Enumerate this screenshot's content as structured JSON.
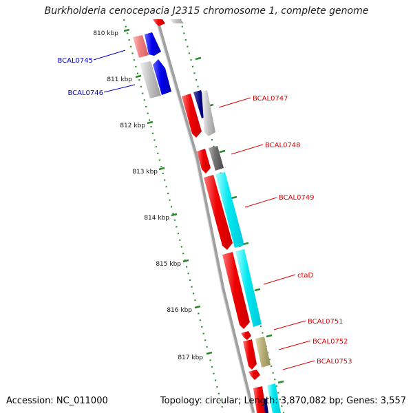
{
  "title": "Burkholderia cenocepacia J2315 chromosome 1, complete genome",
  "footer": {
    "accession": "Accession: NC_011000",
    "summary": "Topology: circular; Length: 3,870,082 bp; Genes: 3,557"
  },
  "colors": {
    "backbone": "#999999",
    "tick": "#2a8a2a",
    "label_red": "#dd0000",
    "label_blue": "#0000cc",
    "red": "#ee0000",
    "blue": "#0000ee",
    "navy": "#000080",
    "cyan": "#00e8f0",
    "grey": "#c0c0c0",
    "darkgrey": "#707070",
    "olive": "#b8b078",
    "pink": "#f08080"
  },
  "scale_labels": [
    "810 kbp",
    "811 kbp",
    "812 kbp",
    "813 kbp",
    "814 kbp",
    "815 kbp",
    "816 kbp",
    "817 kbp"
  ],
  "gene_labels": [
    {
      "text": "BCAL0745",
      "color": "blue"
    },
    {
      "text": "BCAL0746",
      "color": "blue"
    },
    {
      "text": "BCAL0747",
      "color": "red"
    },
    {
      "text": "BCAL0748",
      "color": "red"
    },
    {
      "text": "BCAL0749",
      "color": "red"
    },
    {
      "text": "ctaD",
      "color": "red"
    },
    {
      "text": "BCAL0751",
      "color": "red"
    },
    {
      "text": "BCAL0752",
      "color": "red"
    },
    {
      "text": "BCAL0753",
      "color": "red"
    }
  ]
}
